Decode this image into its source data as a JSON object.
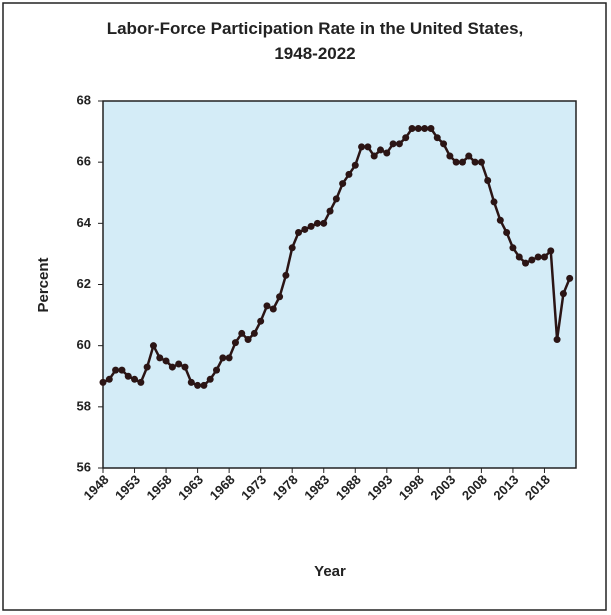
{
  "chart_data": {
    "type": "line",
    "title": "Labor-Force Participation Rate in the United States, 1948-2022",
    "xlabel": "Year",
    "ylabel": "Percent",
    "x": [
      1948,
      1949,
      1950,
      1951,
      1952,
      1953,
      1954,
      1955,
      1956,
      1957,
      1958,
      1959,
      1960,
      1961,
      1962,
      1963,
      1964,
      1965,
      1966,
      1967,
      1968,
      1969,
      1970,
      1971,
      1972,
      1973,
      1974,
      1975,
      1976,
      1977,
      1978,
      1979,
      1980,
      1981,
      1982,
      1983,
      1984,
      1985,
      1986,
      1987,
      1988,
      1989,
      1990,
      1991,
      1992,
      1993,
      1994,
      1995,
      1996,
      1997,
      1998,
      1999,
      2000,
      2001,
      2002,
      2003,
      2004,
      2005,
      2006,
      2007,
      2008,
      2009,
      2010,
      2011,
      2012,
      2013,
      2014,
      2015,
      2016,
      2017,
      2018,
      2019,
      2020,
      2021,
      2022
    ],
    "series": [
      {
        "name": "Participation rate",
        "color": "#2b1515",
        "values": [
          58.8,
          58.9,
          59.2,
          59.2,
          59.0,
          58.9,
          58.8,
          59.3,
          60.0,
          59.6,
          59.5,
          59.3,
          59.4,
          59.3,
          58.8,
          58.7,
          58.7,
          58.9,
          59.2,
          59.6,
          59.6,
          60.1,
          60.4,
          60.2,
          60.4,
          60.8,
          61.3,
          61.2,
          61.6,
          62.3,
          63.2,
          63.7,
          63.8,
          63.9,
          64.0,
          64.0,
          64.4,
          64.8,
          65.3,
          65.6,
          65.9,
          66.5,
          66.5,
          66.2,
          66.4,
          66.3,
          66.6,
          66.6,
          66.8,
          67.1,
          67.1,
          67.1,
          67.1,
          66.8,
          66.6,
          66.2,
          66.0,
          66.0,
          66.2,
          66.0,
          66.0,
          65.4,
          64.7,
          64.1,
          63.7,
          63.2,
          62.9,
          62.7,
          62.8,
          62.9,
          62.9,
          63.1,
          60.2,
          61.7,
          62.2
        ]
      }
    ],
    "xlim": [
      1948,
      2023
    ],
    "xticks": [
      1948,
      1953,
      1958,
      1963,
      1968,
      1973,
      1978,
      1983,
      1988,
      1993,
      1998,
      2003,
      2008,
      2013,
      2018
    ],
    "ylim": [
      56,
      68
    ],
    "yticks": [
      56,
      58,
      60,
      62,
      64,
      66,
      68
    ],
    "background": "#d4ecf7"
  }
}
